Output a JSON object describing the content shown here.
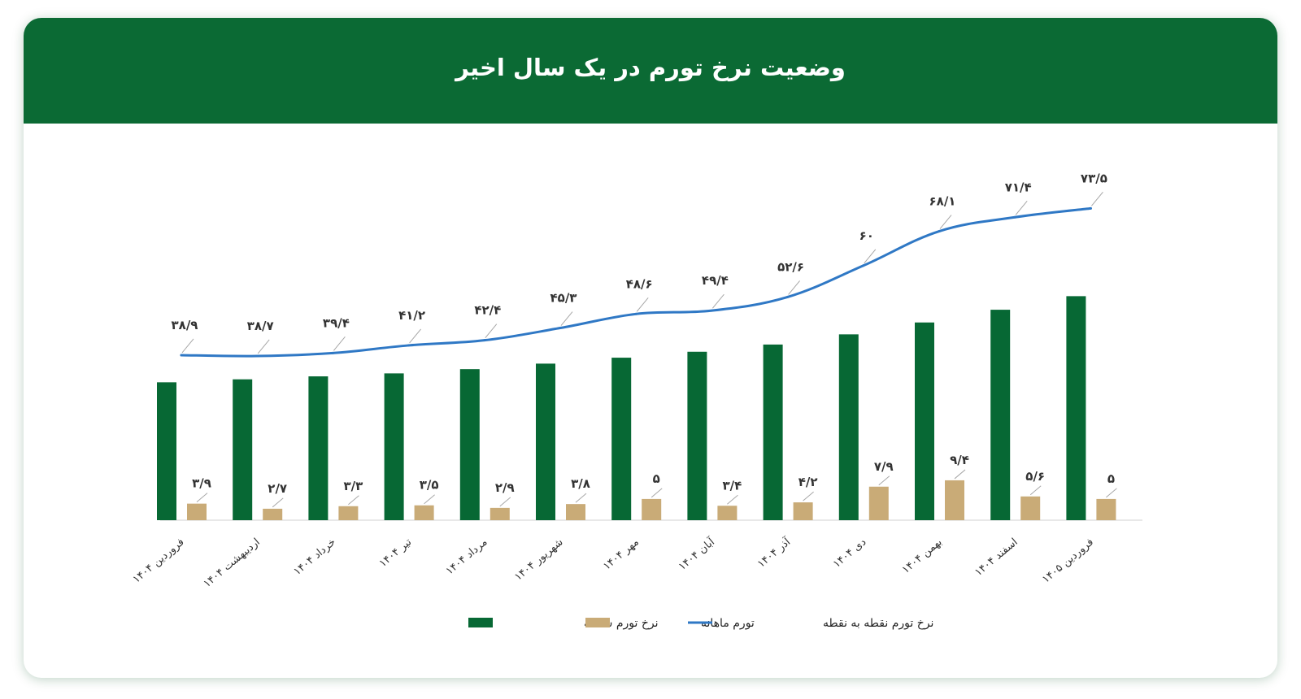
{
  "title": "وضعیت نرخ تورم در یک سال اخیر",
  "colors": {
    "header": "#0b6a34",
    "annual": "#076834",
    "monthly": "#c9ab77",
    "point": "#2f78c5",
    "leader": "#a7a7a7",
    "axis": "#d0d0d0"
  },
  "chart_data": {
    "type": "bar",
    "categories": [
      "فروردین ۱۴۰۴",
      "اردیبهشت ۱۴۰۴",
      "خرداد ۱۴۰۴",
      "تیر ۱۴۰۴",
      "مرداد ۱۴۰۴",
      "شهریور ۱۴۰۴",
      "مهر ۱۴۰۴",
      "آبان ۱۴۰۴",
      "آذر ۱۴۰۴",
      "دی ۱۴۰۴",
      "بهمن ۱۴۰۴",
      "اسفند ۱۴۰۴",
      "فروردین ۱۴۰۵"
    ],
    "series": [
      {
        "name": "نرخ تورم سالانه",
        "type": "bar",
        "values": [
          32.5,
          33.2,
          33.9,
          34.6,
          35.6,
          36.9,
          38.3,
          39.7,
          41.4,
          43.8,
          46.6,
          49.6,
          52.8
        ]
      },
      {
        "name": "تورم ماهانه",
        "type": "bar",
        "values": [
          3.9,
          2.7,
          3.3,
          3.5,
          2.9,
          3.8,
          5,
          3.4,
          4.2,
          7.9,
          9.4,
          5.6,
          5
        ],
        "labels": [
          "۳/۹",
          "۲/۷",
          "۳/۳",
          "۳/۵",
          "۲/۹",
          "۳/۸",
          "۵",
          "۳/۴",
          "۴/۲",
          "۷/۹",
          "۹/۴",
          "۵/۶",
          "۵"
        ]
      },
      {
        "name": "نرخ تورم نقطه به نقطه",
        "type": "line",
        "values": [
          38.9,
          38.7,
          39.4,
          41.2,
          42.4,
          45.3,
          48.6,
          49.4,
          52.6,
          60,
          68.1,
          71.4,
          73.5
        ],
        "labels": [
          "۳۸/۹",
          "۳۸/۷",
          "۳۹/۴",
          "۴۱/۲",
          "۴۲/۴",
          "۴۵/۳",
          "۴۸/۶",
          "۴۹/۴",
          "۵۲/۶",
          "۶۰",
          "۶۸/۱",
          "۷۱/۴",
          "۷۳/۵"
        ]
      }
    ],
    "legend_position": "bottom",
    "grid": false
  }
}
